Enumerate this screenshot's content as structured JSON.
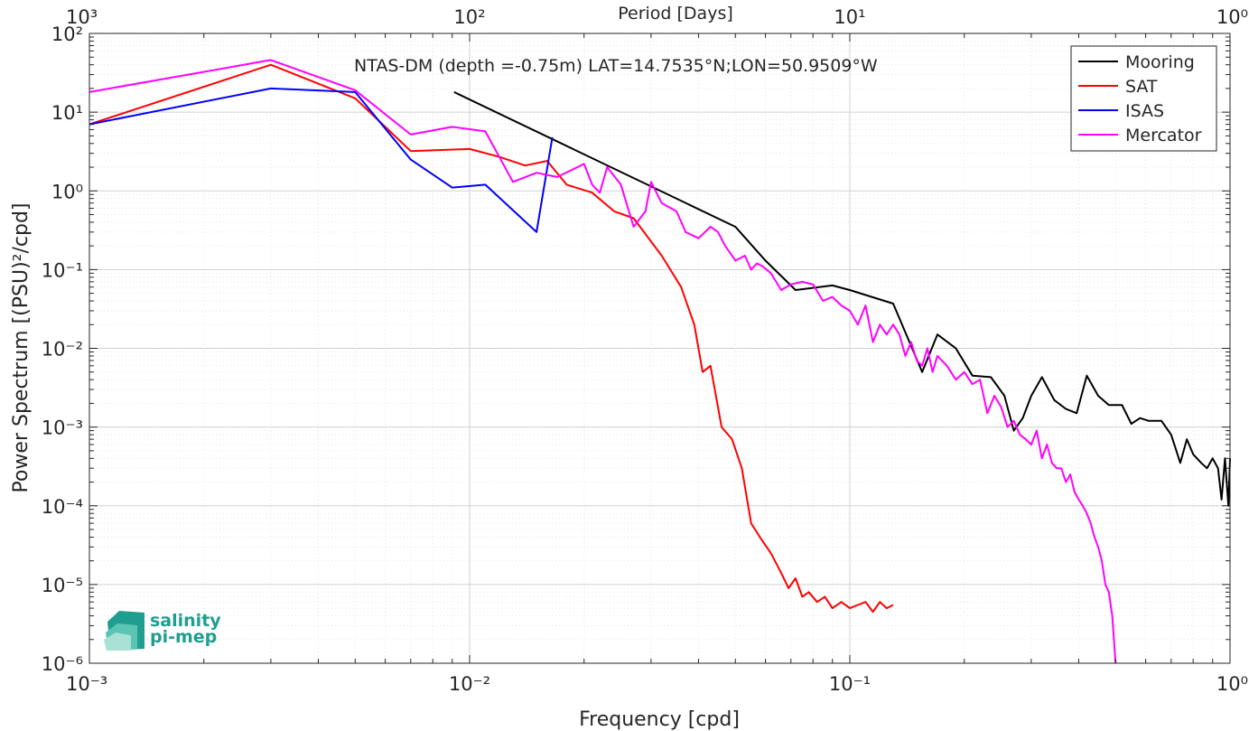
{
  "chart_data": {
    "type": "line",
    "title": "NTAS-DM (depth =-0.75m) LAT=14.7535°N;LON=50.9509°W",
    "xlabel": "Frequency [cpd]",
    "ylabel": "Power Spectrum [(PSU)²/cpd]",
    "top_xlabel": "Period [Days]",
    "xscale": "log",
    "yscale": "log",
    "xlim": [
      0.001,
      1
    ],
    "ylim": [
      1e-06,
      100
    ],
    "grid": true,
    "legend_position": "top-right",
    "x_ticks": [
      "10⁻³",
      "10⁻²",
      "10⁻¹",
      "10⁰"
    ],
    "top_x_ticks": [
      "10³",
      "10²",
      "10¹",
      "10⁰"
    ],
    "y_ticks": [
      "10⁻⁶",
      "10⁻⁵",
      "10⁻⁴",
      "10⁻³",
      "10⁻²",
      "10⁻¹",
      "10⁰",
      "10¹",
      "10²"
    ],
    "series": [
      {
        "name": "Mooring",
        "color": "#000000",
        "points": [
          [
            0.0091,
            18
          ],
          [
            0.05,
            0.35
          ],
          [
            0.06,
            0.13
          ],
          [
            0.072,
            0.055
          ],
          [
            0.09,
            0.063
          ],
          [
            0.1,
            0.055
          ],
          [
            0.13,
            0.037
          ],
          [
            0.155,
            0.005
          ],
          [
            0.17,
            0.015
          ],
          [
            0.19,
            0.01
          ],
          [
            0.21,
            0.0045
          ],
          [
            0.235,
            0.0043
          ],
          [
            0.255,
            0.0025
          ],
          [
            0.27,
            0.0009
          ],
          [
            0.285,
            0.0013
          ],
          [
            0.3,
            0.0025
          ],
          [
            0.32,
            0.0043
          ],
          [
            0.345,
            0.0022
          ],
          [
            0.37,
            0.0017
          ],
          [
            0.395,
            0.0015
          ],
          [
            0.42,
            0.0045
          ],
          [
            0.45,
            0.0025
          ],
          [
            0.48,
            0.0019
          ],
          [
            0.52,
            0.0019
          ],
          [
            0.55,
            0.0011
          ],
          [
            0.58,
            0.0013
          ],
          [
            0.61,
            0.0012
          ],
          [
            0.66,
            0.0012
          ],
          [
            0.7,
            0.0008
          ],
          [
            0.74,
            0.00035
          ],
          [
            0.77,
            0.0007
          ],
          [
            0.8,
            0.00045
          ],
          [
            0.84,
            0.00035
          ],
          [
            0.87,
            0.0003
          ],
          [
            0.9,
            0.0004
          ],
          [
            0.93,
            0.0003
          ],
          [
            0.95,
            0.00012
          ],
          [
            0.97,
            0.0004
          ],
          [
            0.99,
            0.0001
          ],
          [
            1.0,
            0.0004
          ]
        ]
      },
      {
        "name": "SAT",
        "color": "#ff0000",
        "points": [
          [
            0.001,
            7
          ],
          [
            0.003,
            40
          ],
          [
            0.005,
            15
          ],
          [
            0.007,
            3.2
          ],
          [
            0.01,
            3.4
          ],
          [
            0.012,
            2.7
          ],
          [
            0.014,
            2.1
          ],
          [
            0.016,
            2.4
          ],
          [
            0.018,
            1.2
          ],
          [
            0.021,
            0.95
          ],
          [
            0.024,
            0.55
          ],
          [
            0.027,
            0.45
          ],
          [
            0.032,
            0.15
          ],
          [
            0.036,
            0.06
          ],
          [
            0.039,
            0.02
          ],
          [
            0.041,
            0.005
          ],
          [
            0.043,
            0.006
          ],
          [
            0.046,
            0.001
          ],
          [
            0.049,
            0.0007
          ],
          [
            0.052,
            0.0003
          ],
          [
            0.055,
            6e-05
          ],
          [
            0.058,
            4e-05
          ],
          [
            0.062,
            2.5e-05
          ],
          [
            0.066,
            1.4e-05
          ],
          [
            0.069,
            9e-06
          ],
          [
            0.072,
            1.2e-05
          ],
          [
            0.075,
            7e-06
          ],
          [
            0.078,
            8e-06
          ],
          [
            0.082,
            6e-06
          ],
          [
            0.086,
            7e-06
          ],
          [
            0.09,
            5e-06
          ],
          [
            0.095,
            6e-06
          ],
          [
            0.1,
            5e-06
          ],
          [
            0.105,
            5.5e-06
          ],
          [
            0.11,
            6e-06
          ],
          [
            0.115,
            4.5e-06
          ],
          [
            0.12,
            6e-06
          ],
          [
            0.125,
            5e-06
          ],
          [
            0.13,
            5.5e-06
          ]
        ]
      },
      {
        "name": "ISAS",
        "color": "#0000ff",
        "points": [
          [
            0.001,
            7
          ],
          [
            0.003,
            20
          ],
          [
            0.005,
            18
          ],
          [
            0.007,
            2.5
          ],
          [
            0.009,
            1.1
          ],
          [
            0.011,
            1.2
          ],
          [
            0.015,
            0.3
          ],
          [
            0.0165,
            4.8
          ]
        ]
      },
      {
        "name": "Mercator",
        "color": "#ff00ff",
        "points": [
          [
            0.001,
            18
          ],
          [
            0.003,
            46
          ],
          [
            0.005,
            19
          ],
          [
            0.007,
            5.2
          ],
          [
            0.009,
            6.5
          ],
          [
            0.011,
            5.7
          ],
          [
            0.013,
            1.3
          ],
          [
            0.015,
            1.7
          ],
          [
            0.017,
            1.5
          ],
          [
            0.02,
            2.2
          ],
          [
            0.021,
            1.2
          ],
          [
            0.022,
            0.95
          ],
          [
            0.023,
            2.0
          ],
          [
            0.025,
            1.2
          ],
          [
            0.027,
            0.35
          ],
          [
            0.029,
            0.55
          ],
          [
            0.03,
            1.3
          ],
          [
            0.032,
            0.7
          ],
          [
            0.035,
            0.55
          ],
          [
            0.037,
            0.3
          ],
          [
            0.04,
            0.25
          ],
          [
            0.043,
            0.35
          ],
          [
            0.045,
            0.3
          ],
          [
            0.047,
            0.2
          ],
          [
            0.05,
            0.13
          ],
          [
            0.053,
            0.15
          ],
          [
            0.055,
            0.1
          ],
          [
            0.057,
            0.12
          ],
          [
            0.059,
            0.11
          ],
          [
            0.062,
            0.09
          ],
          [
            0.066,
            0.055
          ],
          [
            0.07,
            0.065
          ],
          [
            0.075,
            0.07
          ],
          [
            0.08,
            0.065
          ],
          [
            0.085,
            0.04
          ],
          [
            0.09,
            0.045
          ],
          [
            0.095,
            0.035
          ],
          [
            0.1,
            0.03
          ],
          [
            0.105,
            0.02
          ],
          [
            0.11,
            0.035
          ],
          [
            0.115,
            0.012
          ],
          [
            0.12,
            0.02
          ],
          [
            0.125,
            0.015
          ],
          [
            0.13,
            0.02
          ],
          [
            0.135,
            0.015
          ],
          [
            0.14,
            0.008
          ],
          [
            0.145,
            0.012
          ],
          [
            0.15,
            0.007
          ],
          [
            0.155,
            0.006
          ],
          [
            0.16,
            0.01
          ],
          [
            0.165,
            0.005
          ],
          [
            0.17,
            0.008
          ],
          [
            0.18,
            0.006
          ],
          [
            0.19,
            0.004
          ],
          [
            0.2,
            0.005
          ],
          [
            0.21,
            0.0035
          ],
          [
            0.22,
            0.004
          ],
          [
            0.23,
            0.0015
          ],
          [
            0.24,
            0.0025
          ],
          [
            0.25,
            0.0018
          ],
          [
            0.26,
            0.001
          ],
          [
            0.27,
            0.0012
          ],
          [
            0.28,
            0.0008
          ],
          [
            0.29,
            0.0007
          ],
          [
            0.3,
            0.0006
          ],
          [
            0.31,
            0.0009
          ],
          [
            0.32,
            0.0004
          ],
          [
            0.33,
            0.0006
          ],
          [
            0.34,
            0.00035
          ],
          [
            0.35,
            0.0003
          ],
          [
            0.36,
            0.0003
          ],
          [
            0.37,
            0.0002
          ],
          [
            0.38,
            0.00025
          ],
          [
            0.39,
            0.00015
          ],
          [
            0.4,
            0.00012
          ],
          [
            0.41,
            0.0001
          ],
          [
            0.42,
            8e-05
          ],
          [
            0.43,
            6e-05
          ],
          [
            0.44,
            4e-05
          ],
          [
            0.45,
            3e-05
          ],
          [
            0.46,
            2e-05
          ],
          [
            0.47,
            1e-05
          ],
          [
            0.48,
            8e-06
          ],
          [
            0.49,
            4e-06
          ],
          [
            0.5,
            1e-06
          ]
        ]
      }
    ]
  },
  "logo": {
    "line1": "salinity",
    "line2": "pi-mep"
  }
}
